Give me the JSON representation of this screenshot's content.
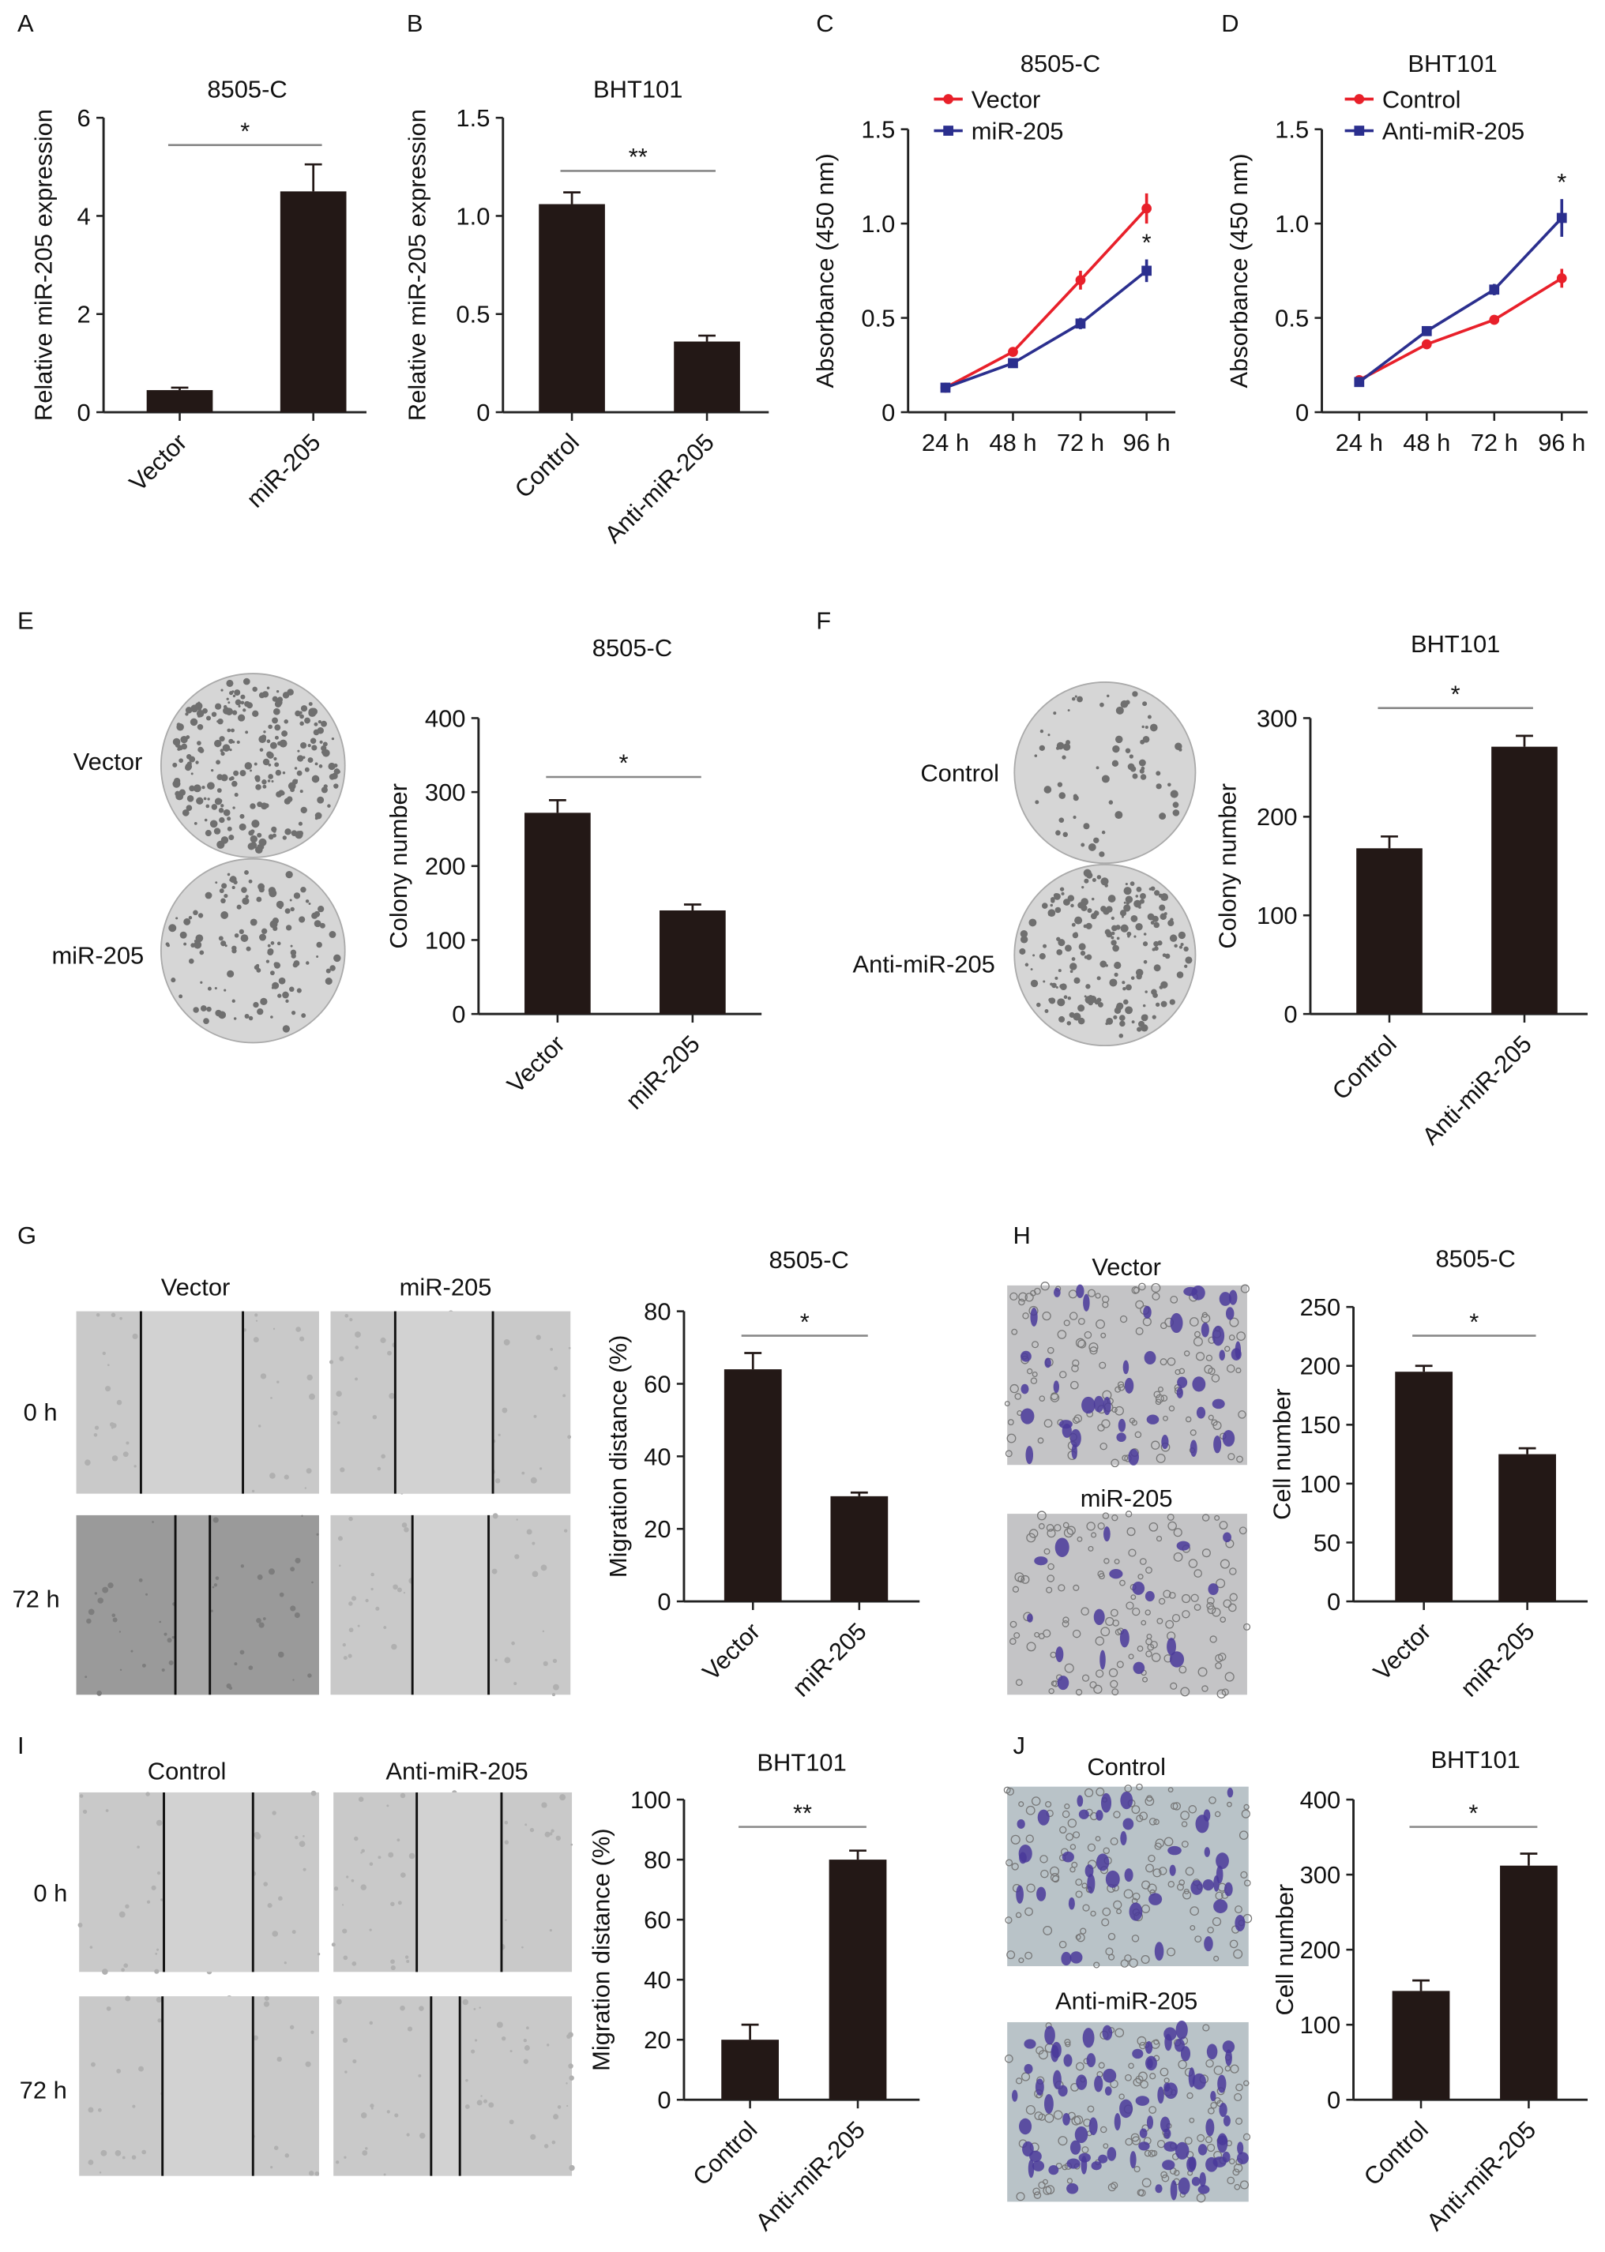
{
  "colors": {
    "bar": "#231816",
    "red": "#e8202a",
    "blue": "#2b2f8e",
    "axis": "#222222",
    "sigline": "#888888"
  },
  "chart_data": [
    {
      "id": "A",
      "letter": "A",
      "type": "bar",
      "title": "8505-C",
      "ylabel": "Relative miR-205 expression",
      "categories": [
        "Vector",
        "miR-205"
      ],
      "values": [
        0.45,
        4.5
      ],
      "errors": [
        0.05,
        0.55
      ],
      "ylim": [
        0,
        6
      ],
      "yticks": [
        "0",
        "2",
        "4",
        "6"
      ],
      "significance": "*"
    },
    {
      "id": "B",
      "letter": "B",
      "type": "bar",
      "title": "BHT101",
      "ylabel": "Relative miR-205 expression",
      "categories": [
        "Control",
        "Anti-miR-205"
      ],
      "values": [
        1.06,
        0.36
      ],
      "errors": [
        0.06,
        0.03
      ],
      "ylim": [
        0,
        1.5
      ],
      "yticks": [
        "0",
        "0.5",
        "1.0",
        "1.5"
      ],
      "significance": "**"
    },
    {
      "id": "C",
      "letter": "C",
      "type": "line",
      "title": "8505-C",
      "ylabel": "Absorbance (450 nm)",
      "x": [
        "24 h",
        "48 h",
        "72 h",
        "96 h"
      ],
      "ylim": [
        0,
        1.5
      ],
      "yticks": [
        "0",
        "0.5",
        "1.0",
        "1.5"
      ],
      "legend": "top-left",
      "series": [
        {
          "name": "Vector",
          "color": "#e8202a",
          "values": [
            0.13,
            0.32,
            0.7,
            1.08
          ],
          "errors": [
            0.01,
            0.02,
            0.05,
            0.08
          ]
        },
        {
          "name": "miR-205",
          "color": "#2b2f8e",
          "values": [
            0.13,
            0.26,
            0.47,
            0.75
          ],
          "errors": [
            0.01,
            0.02,
            0.03,
            0.06
          ]
        }
      ],
      "significance": "*",
      "significance_at": "96 h"
    },
    {
      "id": "D",
      "letter": "D",
      "type": "line",
      "title": "BHT101",
      "ylabel": "Absorbance (450 nm)",
      "x": [
        "24 h",
        "48 h",
        "72 h",
        "96 h"
      ],
      "ylim": [
        0,
        1.5
      ],
      "yticks": [
        "0",
        "0.5",
        "1.0",
        "1.5"
      ],
      "legend": "top-left",
      "series": [
        {
          "name": "Control",
          "color": "#e8202a",
          "values": [
            0.17,
            0.36,
            0.49,
            0.71
          ],
          "errors": [
            0.01,
            0.01,
            0.01,
            0.05
          ]
        },
        {
          "name": "Anti-miR-205",
          "color": "#2b2f8e",
          "values": [
            0.16,
            0.43,
            0.65,
            1.03
          ],
          "errors": [
            0.01,
            0.01,
            0.03,
            0.1
          ]
        }
      ],
      "significance": "*",
      "significance_at": "96 h"
    },
    {
      "id": "E",
      "letter": "E",
      "type": "bar",
      "title": "8505-C",
      "ylabel": "Colony number",
      "categories": [
        "Vector",
        "miR-205"
      ],
      "values": [
        272,
        140
      ],
      "errors": [
        17,
        8
      ],
      "ylim": [
        0,
        400
      ],
      "yticks": [
        "0",
        "100",
        "200",
        "300",
        "400"
      ],
      "significance": "*"
    },
    {
      "id": "F",
      "letter": "F",
      "type": "bar",
      "title": "BHT101",
      "ylabel": "Colony number",
      "categories": [
        "Control",
        "Anti-miR-205"
      ],
      "values": [
        168,
        271
      ],
      "errors": [
        12,
        11
      ],
      "ylim": [
        0,
        300
      ],
      "yticks": [
        "0",
        "100",
        "200",
        "300"
      ],
      "significance": "*"
    },
    {
      "id": "G",
      "letter": "G",
      "type": "bar",
      "title": "8505-C",
      "ylabel": "Migration distance (%)",
      "categories": [
        "Vector",
        "miR-205"
      ],
      "values": [
        64,
        29
      ],
      "errors": [
        4.5,
        1
      ],
      "ylim": [
        0,
        80
      ],
      "yticks": [
        "0",
        "20",
        "40",
        "60",
        "80"
      ],
      "significance": "*"
    },
    {
      "id": "H",
      "letter": "H",
      "type": "bar",
      "title": "8505-C",
      "ylabel": "Cell number",
      "categories": [
        "Vector",
        "miR-205"
      ],
      "values": [
        195,
        125
      ],
      "errors": [
        5,
        5
      ],
      "ylim": [
        0,
        250
      ],
      "yticks": [
        "0",
        "50",
        "100",
        "150",
        "200",
        "250"
      ],
      "significance": "*"
    },
    {
      "id": "I",
      "letter": "I",
      "type": "bar",
      "title": "BHT101",
      "ylabel": "Migration distance (%)",
      "categories": [
        "Control",
        "Anti-miR-205"
      ],
      "values": [
        20,
        80
      ],
      "errors": [
        5,
        3
      ],
      "ylim": [
        0,
        100
      ],
      "yticks": [
        "0",
        "20",
        "40",
        "60",
        "80",
        "100"
      ],
      "significance": "**"
    },
    {
      "id": "J",
      "letter": "J",
      "type": "bar",
      "title": "BHT101",
      "ylabel": "Cell number",
      "categories": [
        "Control",
        "Anti-miR-205"
      ],
      "values": [
        145,
        312
      ],
      "errors": [
        14,
        16
      ],
      "ylim": [
        0,
        400
      ],
      "yticks": [
        "0",
        "100",
        "200",
        "300",
        "400"
      ],
      "significance": "*"
    }
  ],
  "images": {
    "E": {
      "labels": [
        "Vector",
        "miR-205"
      ]
    },
    "F": {
      "labels": [
        "Control",
        "Anti-miR-205"
      ]
    },
    "G": {
      "columns": [
        "Vector",
        "miR-205"
      ],
      "rows": [
        "0 h",
        "72 h"
      ]
    },
    "H": {
      "labels": [
        "Vector",
        "miR-205"
      ]
    },
    "I": {
      "columns": [
        "Control",
        "Anti-miR-205"
      ],
      "rows": [
        "0 h",
        "72 h"
      ]
    },
    "J": {
      "labels": [
        "Control",
        "Anti-miR-205"
      ]
    }
  }
}
